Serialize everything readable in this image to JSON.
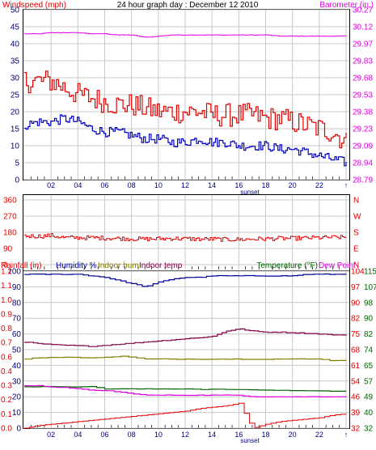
{
  "title": "24 hour graph day : December 12 2010",
  "colors": {
    "wind": "#e00000",
    "gust": "#e00000",
    "speed": "#0000c0",
    "baro": "#e000e0",
    "dir": "#e00000",
    "humidity": "#000099",
    "indoor_hum": "#808000",
    "indoor_temp": "#800040",
    "temperature": "#006400",
    "dew": "#e000e0",
    "rain": "#e00000",
    "grid": "#c8c8c8",
    "axis_blue": "#000080",
    "axis_red": "#e00000",
    "axis_magenta": "#e000e0",
    "axis_green": "#006400"
  },
  "chart_data": [
    {
      "type": "line",
      "id": "wind_baro",
      "left_label": "Windspeed (mph)",
      "right_label": "Barometer (in.)",
      "x_ticks": [
        "02",
        "04",
        "06",
        "08",
        "10",
        "12",
        "14",
        "16",
        "18",
        "20",
        "22",
        "↑"
      ],
      "x_marker": "sunset",
      "left_ticks": [
        "50",
        "45",
        "40",
        "35",
        "30",
        "25",
        "20",
        "15",
        "10",
        "5",
        "0"
      ],
      "right_ticks": [
        "30.27",
        "30.12",
        "29.97",
        "29.83",
        "29.68",
        "29.53",
        "29.38",
        "29.23",
        "29.09",
        "28.94",
        "28.79"
      ],
      "ylim_left": [
        0,
        50
      ],
      "ylim_right": [
        28.79,
        30.27
      ],
      "grid": true,
      "x_hours": [
        0,
        1,
        2,
        3,
        4,
        5,
        6,
        7,
        8,
        9,
        10,
        11,
        12,
        13,
        14,
        15,
        16,
        17,
        18,
        19,
        20,
        21,
        22,
        23,
        24
      ],
      "series": [
        {
          "name": "Windspeed (mph)",
          "values": [
            29,
            29,
            29,
            27,
            25,
            24,
            23,
            22,
            22,
            21,
            20,
            20,
            20,
            20,
            19,
            19,
            19,
            19,
            18,
            18,
            17,
            16,
            15,
            14,
            11
          ]
        },
        {
          "name": "Average",
          "values": [
            16,
            17,
            17,
            18,
            17,
            15,
            14,
            14,
            13,
            12,
            12,
            11,
            11,
            12,
            11,
            11,
            10,
            10,
            10,
            9,
            9,
            8,
            7,
            6,
            5
          ]
        },
        {
          "name": "Barometer (in.)",
          "values": [
            30.06,
            30.06,
            30.07,
            30.07,
            30.07,
            30.06,
            30.06,
            30.05,
            30.05,
            30.03,
            30.04,
            30.05,
            30.05,
            30.05,
            30.05,
            30.05,
            30.05,
            30.05,
            30.05,
            30.04,
            30.04,
            30.04,
            30.04,
            30.04,
            30.04
          ]
        }
      ]
    },
    {
      "type": "line",
      "id": "direction",
      "left_ticks": [
        "360",
        "270",
        "180",
        "90",
        "0"
      ],
      "right_ticks": [
        "N",
        "W",
        "S",
        "E",
        "N"
      ],
      "ylim": [
        0,
        360
      ],
      "grid": true,
      "series": [
        {
          "name": "Wind direction",
          "values": [
            160,
            158,
            162,
            150,
            150,
            150,
            148,
            146,
            144,
            142,
            144,
            146,
            144,
            142,
            142,
            140,
            140,
            142,
            144,
            146,
            146,
            148,
            150,
            152,
            152
          ]
        }
      ]
    },
    {
      "type": "line",
      "id": "temp_hum_rain",
      "left_outer_label": "Rainfall (in)",
      "left_inner_label": "Humidity %",
      "indoor_hum_label": "Indoor hum",
      "indoor_temp_label": "Indoor temp",
      "right_inner_label": "Temperature (°F)",
      "right_outer_label": "Dew Point",
      "x_ticks": [
        "02",
        "04",
        "06",
        "08",
        "10",
        "12",
        "14",
        "16",
        "18",
        "20",
        "22",
        "↑"
      ],
      "x_marker": "sunset",
      "rain_ticks": [
        "1.2",
        "1.1",
        "1.0",
        "0.9",
        "0.8",
        "0.7",
        "0.6",
        "0.4",
        "0.3",
        "0.2",
        "0.1",
        "0.0"
      ],
      "humidity_ticks": [
        "100",
        "90",
        "80",
        "70",
        "60",
        "50",
        "40",
        "30",
        "20",
        "10",
        "0"
      ],
      "temp_ticks": [
        "104",
        "97",
        "90",
        "82",
        "75",
        "68",
        "61",
        "54",
        "46",
        "39",
        "32"
      ],
      "dew_ticks": [
        "115",
        "107",
        "98",
        "90",
        "82",
        "74",
        "65",
        "57",
        "49",
        "40",
        "32"
      ],
      "ylim_humidity": [
        0,
        100
      ],
      "ylim_temp": [
        32,
        104
      ],
      "ylim_rain": [
        0,
        1.2
      ],
      "grid": true,
      "series": [
        {
          "name": "Humidity %",
          "values": [
            98,
            98,
            98,
            98,
            98,
            97,
            96,
            94,
            92,
            90,
            93,
            95,
            96,
            96,
            97,
            97,
            97,
            97,
            97,
            97,
            97,
            98,
            98,
            98,
            98
          ]
        },
        {
          "name": "Indoor hum",
          "values": [
            44,
            45,
            45,
            45,
            45,
            45,
            45,
            46,
            45,
            44,
            44,
            44,
            44,
            44,
            44,
            44,
            44,
            44,
            44,
            44,
            44,
            44,
            44,
            43,
            43
          ]
        },
        {
          "name": "Indoor temp",
          "values": [
            71.5,
            70.8,
            70.3,
            70,
            69.8,
            69.5,
            70,
            70.5,
            71,
            71.5,
            72,
            72.5,
            73,
            73.5,
            74,
            76.5,
            77.5,
            76.5,
            76,
            76,
            75.8,
            75.5,
            75.2,
            74.8,
            74.5
          ]
        },
        {
          "name": "Temperature (°F)",
          "values": [
            51,
            51,
            51,
            51,
            51,
            51,
            50,
            50,
            50,
            50,
            50,
            50,
            50,
            49.8,
            49.8,
            49.8,
            49.6,
            49.6,
            49.4,
            49.4,
            49.2,
            49.2,
            49,
            49,
            49
          ]
        },
        {
          "name": "Dew Point",
          "values": [
            27,
            27,
            26,
            26,
            25,
            24,
            24,
            23,
            22,
            21,
            21,
            21,
            21,
            21,
            21,
            21,
            21,
            20,
            20,
            20,
            20,
            20,
            20,
            20,
            20
          ]
        },
        {
          "name": "Rainfall (in)",
          "values": [
            0,
            0.02,
            0.03,
            0.04,
            0.05,
            0.06,
            0.07,
            0.08,
            0.09,
            0.1,
            0.11,
            0.12,
            0.13,
            0.15,
            0.16,
            0.17,
            0.19,
            0.0,
            0.03,
            0.05,
            0.06,
            0.07,
            0.08,
            0.1,
            0.11
          ]
        }
      ]
    }
  ]
}
